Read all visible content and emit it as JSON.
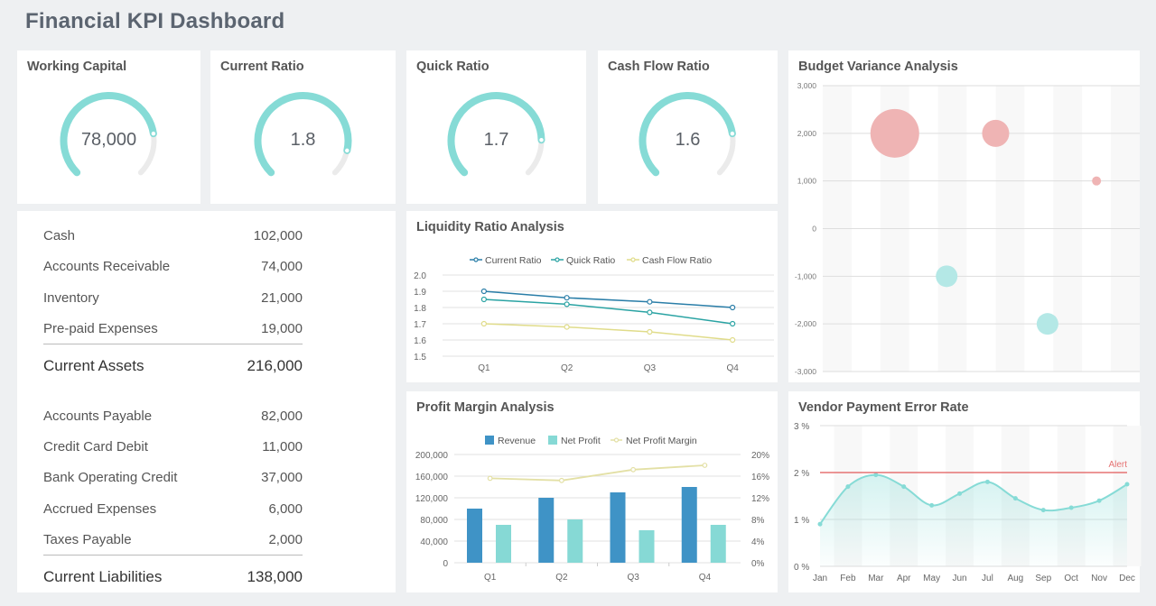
{
  "header": {
    "title": "Financial KPI Dashboard"
  },
  "colors": {
    "teal": "#86dbd6",
    "blue": "#3f93c6",
    "yellow": "#e6e3a3",
    "red": "#ea9898",
    "alert": "#e57373",
    "track": "#ebebeb"
  },
  "gauges": [
    {
      "title": "Working Capital",
      "value": "78,000",
      "fraction": 0.8
    },
    {
      "title": "Current Ratio",
      "value": "1.8",
      "fraction": 0.88
    },
    {
      "title": "Quick Ratio",
      "value": "1.7",
      "fraction": 0.83
    },
    {
      "title": "Cash Flow Ratio",
      "value": "1.6",
      "fraction": 0.8
    }
  ],
  "balance_sheet": {
    "assets": [
      {
        "label": "Cash",
        "value": "102,000"
      },
      {
        "label": "Accounts Receivable",
        "value": "74,000"
      },
      {
        "label": "Inventory",
        "value": "21,000"
      },
      {
        "label": "Pre-paid Expenses",
        "value": "19,000"
      }
    ],
    "assets_total": {
      "label": "Current Assets",
      "value": "216,000"
    },
    "liabilities": [
      {
        "label": "Accounts Payable",
        "value": "82,000"
      },
      {
        "label": "Credit Card Debit",
        "value": "11,000"
      },
      {
        "label": "Bank Operating Credit",
        "value": "37,000"
      },
      {
        "label": "Accrued Expenses",
        "value": "6,000"
      },
      {
        "label": "Taxes Payable",
        "value": "2,000"
      }
    ],
    "liabilities_total": {
      "label": "Current Liabilities",
      "value": "138,000"
    }
  },
  "chart_data": [
    {
      "id": "liquidity",
      "type": "line",
      "title": "Liquidity Ratio Analysis",
      "categories": [
        "Q1",
        "Q2",
        "Q3",
        "Q4"
      ],
      "ylim": [
        1.5,
        2.0
      ],
      "yticks": [
        "1.5",
        "1.6",
        "1.7",
        "1.8",
        "1.9",
        "2.0"
      ],
      "series": [
        {
          "name": "Current Ratio",
          "color": "#2a7ea8",
          "values": [
            1.9,
            1.86,
            1.835,
            1.8
          ]
        },
        {
          "name": "Quick Ratio",
          "color": "#2aa3a3",
          "values": [
            1.85,
            1.82,
            1.77,
            1.7
          ]
        },
        {
          "name": "Cash Flow Ratio",
          "color": "#e0dc8a",
          "values": [
            1.7,
            1.68,
            1.65,
            1.6
          ]
        }
      ]
    },
    {
      "id": "profit",
      "type": "bar",
      "title": "Profit Margin Analysis",
      "categories": [
        "Q1",
        "Q2",
        "Q3",
        "Q4"
      ],
      "ylim": [
        0,
        200000
      ],
      "yticks": [
        "0",
        "40,000",
        "80,000",
        "120,000",
        "160,000",
        "200,000"
      ],
      "y2lim": [
        0,
        20
      ],
      "y2ticks": [
        "0%",
        "4%",
        "8%",
        "12%",
        "16%",
        "20%"
      ],
      "series": [
        {
          "name": "Revenue",
          "color": "#3f93c6",
          "values": [
            100000,
            120000,
            130000,
            140000
          ]
        },
        {
          "name": "Net Profit",
          "color": "#86d9d5",
          "values": [
            70000,
            80000,
            60000,
            70000
          ]
        }
      ],
      "line_series": {
        "name": "Net Profit Margin",
        "color": "#e3e0a5",
        "values": [
          15.6,
          15.2,
          17.2,
          18
        ]
      }
    },
    {
      "id": "budget",
      "type": "scatter",
      "title": "Budget Variance Analysis",
      "ylim": [
        -3000,
        3000
      ],
      "yticks": [
        "-3,000",
        "-2,000",
        "-1,000",
        "0",
        "1,000",
        "2,000",
        "3,000"
      ],
      "points": [
        {
          "x": 2,
          "y": 2000,
          "size": 27,
          "color": "#efb4b4"
        },
        {
          "x": 5.5,
          "y": 2000,
          "size": 15,
          "color": "#efb4b4"
        },
        {
          "x": 9,
          "y": 1000,
          "size": 5,
          "color": "#efb4b4"
        },
        {
          "x": 3.8,
          "y": -1000,
          "size": 12,
          "color": "#b4e8e6"
        },
        {
          "x": 7.3,
          "y": -2000,
          "size": 12,
          "color": "#b4e8e6"
        }
      ]
    },
    {
      "id": "vendor",
      "type": "area",
      "title": "Vendor Payment Error Rate",
      "categories": [
        "Jan",
        "Feb",
        "Mar",
        "Apr",
        "May",
        "Jun",
        "Jul",
        "Aug",
        "Sep",
        "Oct",
        "Nov",
        "Dec"
      ],
      "values": [
        0.9,
        1.7,
        1.95,
        1.7,
        1.3,
        1.55,
        1.8,
        1.45,
        1.2,
        1.25,
        1.4,
        1.75
      ],
      "ylim": [
        0,
        3
      ],
      "yticks": [
        "0 %",
        "1 %",
        "2 %",
        "3 %"
      ],
      "alert": {
        "value": 2,
        "label": "Alert"
      }
    }
  ]
}
